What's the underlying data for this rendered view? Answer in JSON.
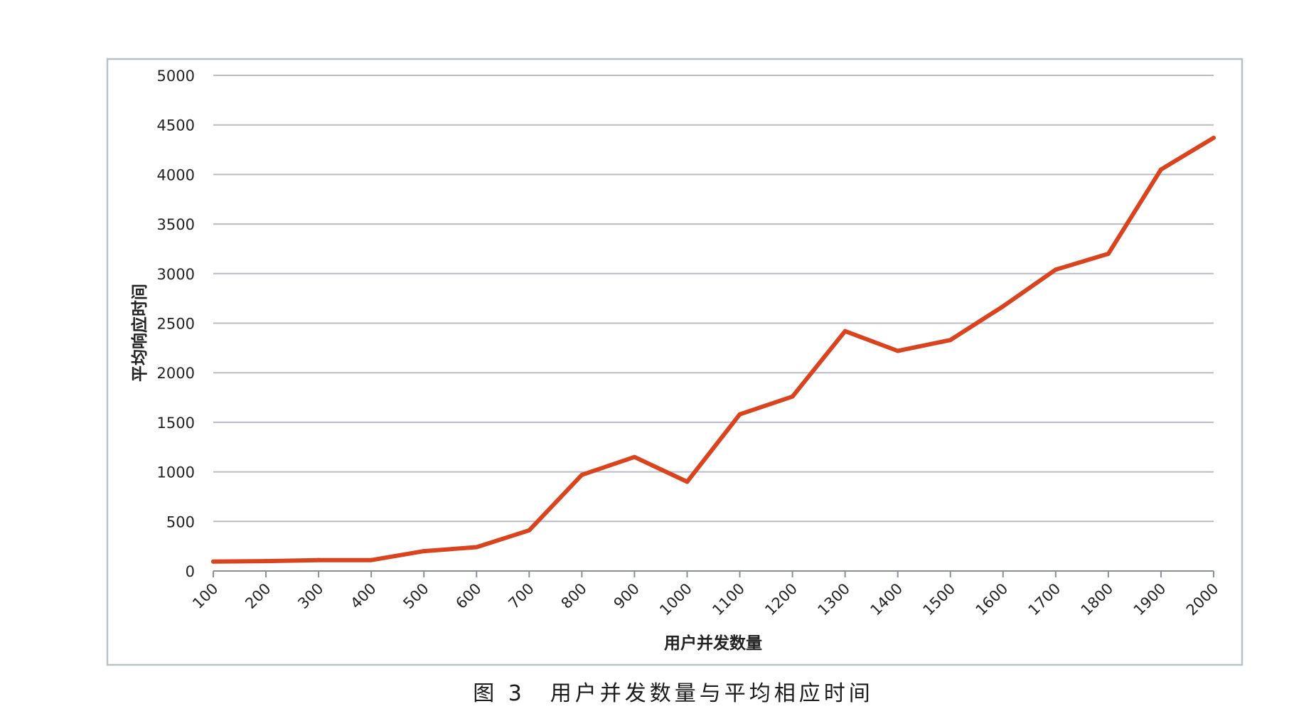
{
  "caption": "图 3　用户并发数量与平均相应时间",
  "chart_data": {
    "type": "line",
    "xlabel": "用户并发数量",
    "ylabel": "平均响应时间",
    "categories": [
      "100",
      "200",
      "300",
      "400",
      "500",
      "600",
      "700",
      "800",
      "900",
      "1000",
      "1100",
      "1200",
      "1300",
      "1400",
      "1500",
      "1600",
      "1700",
      "1800",
      "1900",
      "2000"
    ],
    "y_ticks": [
      "0",
      "500",
      "1000",
      "1500",
      "2000",
      "2500",
      "3000",
      "3500",
      "4000",
      "4500",
      "5000"
    ],
    "ylim": [
      0,
      5000
    ],
    "grid": true,
    "series": [
      {
        "values": [
          95,
          100,
          110,
          110,
          200,
          240,
          410,
          970,
          1150,
          900,
          1580,
          1760,
          2420,
          2220,
          2330,
          2670,
          3040,
          3200,
          4050,
          4370
        ],
        "color": "#d9431e"
      }
    ],
    "colors": {
      "line": "#d9431e",
      "grid": "#b8bcc6",
      "frame": "#b8c0cc",
      "axis": "#8a8f99"
    }
  }
}
